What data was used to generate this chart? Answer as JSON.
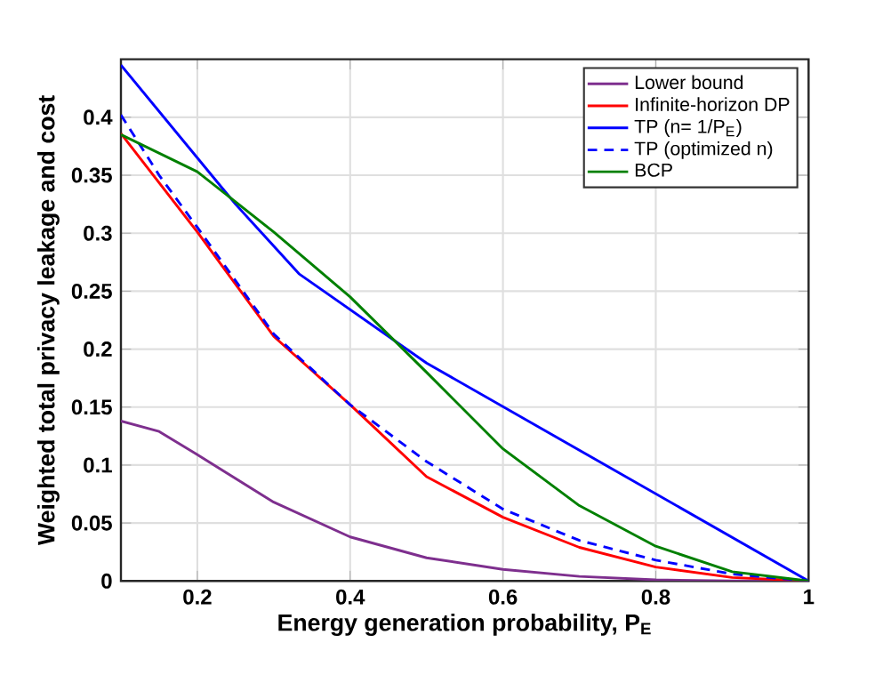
{
  "chart_data": {
    "type": "line",
    "xlabel": "Energy generation probability, P$_{E}$",
    "ylabel": "Weighted total privacy leakage and cost",
    "xlim": [
      0.1,
      1
    ],
    "xticks": [
      0.2,
      0.4,
      0.6,
      0.8,
      1
    ],
    "ylim": [
      0,
      0.45
    ],
    "yticks": [
      0,
      0.05,
      0.1,
      0.15,
      0.2,
      0.25,
      0.3,
      0.35,
      0.4
    ],
    "grid": true,
    "legend": "top right",
    "line_style": "solid",
    "marker": "none",
    "series": [
      {
        "name": "Lower bound",
        "color": "#7e2f8e",
        "x": [
          0.1,
          0.15,
          0.2,
          0.3,
          0.4,
          0.5,
          0.6,
          0.7,
          0.8,
          0.9,
          1
        ],
        "values": [
          0.138,
          0.129,
          0.109,
          0.068,
          0.038,
          0.02,
          0.01,
          0.004,
          0.001,
          0,
          0
        ]
      },
      {
        "name": "Infinite-horizon DP",
        "color": "#ff0000",
        "x": [
          0.1,
          0.2,
          0.3,
          0.4,
          0.5,
          0.6,
          0.7,
          0.8,
          0.9,
          1
        ],
        "values": [
          0.386,
          0.301,
          0.211,
          0.152,
          0.09,
          0.055,
          0.029,
          0.012,
          0.003,
          0
        ]
      },
      {
        "name": "TP (n= 1/P$_{E}$)",
        "color": "#0000ff",
        "x": [
          0.1,
          0.25,
          0.333,
          0.5,
          1
        ],
        "values": [
          0.445,
          0.325,
          0.265,
          0.188,
          0
        ]
      },
      {
        "name": "TP (optimized n)",
        "color": "#0000ff",
        "line_style": "dashed",
        "x": [
          0.1,
          0.15,
          0.2,
          0.3,
          0.4,
          0.5,
          0.6,
          0.7,
          0.8,
          0.9,
          1
        ],
        "values": [
          0.402,
          0.35,
          0.305,
          0.213,
          0.152,
          0.103,
          0.062,
          0.035,
          0.018,
          0.006,
          0
        ]
      },
      {
        "name": "BCP",
        "color": "#008000",
        "x": [
          0.1,
          0.2,
          0.3,
          0.4,
          0.5,
          0.6,
          0.7,
          0.8,
          0.9,
          1
        ],
        "values": [
          0.385,
          0.353,
          0.301,
          0.245,
          0.18,
          0.114,
          0.065,
          0.03,
          0.008,
          0
        ]
      }
    ]
  }
}
